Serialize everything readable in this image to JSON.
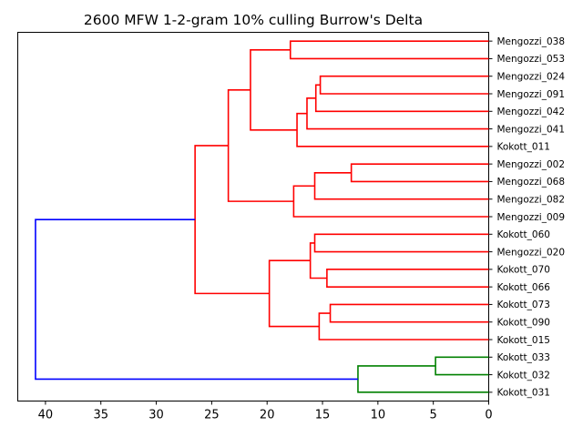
{
  "chart_data": {
    "type": "dendrogram",
    "title": "2600 MFW 1-2-gram 10% culling Burrow's Delta",
    "xlabel": "",
    "ylabel": "",
    "orientation": "left",
    "x_axis_reversed": true,
    "xlim": [
      42.5,
      0
    ],
    "xticks": [
      40,
      35,
      30,
      25,
      20,
      15,
      10,
      5,
      0
    ],
    "leaves": [
      "Mengozzi_038",
      "Mengozzi_053",
      "Mengozzi_024",
      "Mengozzi_091",
      "Mengozzi_042",
      "Mengozzi_041",
      "Kokott_011",
      "Mengozzi_002",
      "Mengozzi_068",
      "Mengozzi_082",
      "Mengozzi_009",
      "Kokott_060",
      "Mengozzi_020",
      "Kokott_070",
      "Kokott_066",
      "Kokott_073",
      "Kokott_090",
      "Kokott_015",
      "Kokott_033",
      "Kokott_032",
      "Kokott_031"
    ],
    "colors": {
      "red": "#ff0000",
      "green": "#008000",
      "blue": "#0000ff"
    },
    "merges": [
      {
        "left": "Mengozzi_038",
        "right": "Mengozzi_053",
        "height": 17.9,
        "color": "red"
      },
      {
        "left": "Mengozzi_024",
        "right": "Mengozzi_091",
        "height": 15.2,
        "color": "red"
      },
      {
        "left": "m2",
        "right": "Mengozzi_042",
        "height": 15.6,
        "color": "red"
      },
      {
        "left": "m3",
        "right": "Mengozzi_041",
        "height": 16.4,
        "color": "red"
      },
      {
        "left": "m4",
        "right": "Kokott_011",
        "height": 17.3,
        "color": "red"
      },
      {
        "left": "m1",
        "right": "m5",
        "height": 21.5,
        "color": "red"
      },
      {
        "left": "Mengozzi_002",
        "right": "Mengozzi_068",
        "height": 12.4,
        "color": "red"
      },
      {
        "left": "m7",
        "right": "Mengozzi_082",
        "height": 15.7,
        "color": "red"
      },
      {
        "left": "m8",
        "right": "Mengozzi_009",
        "height": 17.6,
        "color": "red"
      },
      {
        "left": "m6",
        "right": "m9",
        "height": 23.5,
        "color": "red"
      },
      {
        "left": "Kokott_060",
        "right": "Mengozzi_020",
        "height": 15.7,
        "color": "red"
      },
      {
        "left": "Kokott_070",
        "right": "Kokott_066",
        "height": 14.6,
        "color": "red"
      },
      {
        "left": "m11",
        "right": "m12",
        "height": 16.1,
        "color": "red"
      },
      {
        "left": "Kokott_073",
        "right": "Kokott_090",
        "height": 14.3,
        "color": "red"
      },
      {
        "left": "m14",
        "right": "Kokott_015",
        "height": 15.3,
        "color": "red"
      },
      {
        "left": "m13",
        "right": "m15",
        "height": 19.8,
        "color": "red"
      },
      {
        "left": "m10",
        "right": "m16",
        "height": 26.5,
        "color": "red"
      },
      {
        "left": "Kokott_033",
        "right": "Kokott_032",
        "height": 4.8,
        "color": "green"
      },
      {
        "left": "m18",
        "right": "Kokott_031",
        "height": 11.8,
        "color": "green"
      },
      {
        "left": "m17",
        "right": "m19",
        "height": 40.9,
        "color": "blue"
      }
    ]
  }
}
